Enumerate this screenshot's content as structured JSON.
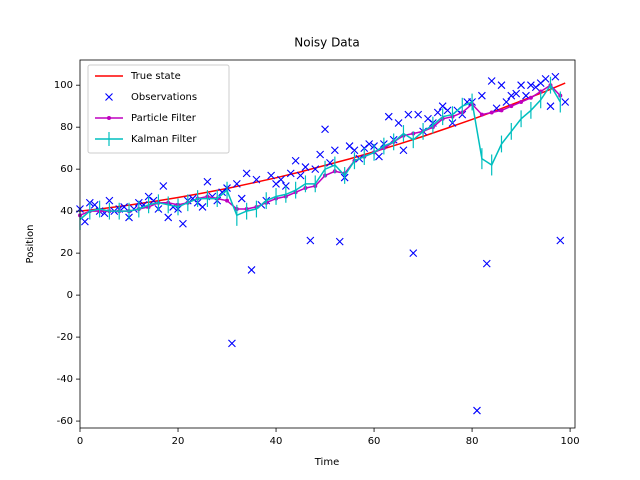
{
  "chart_data": {
    "type": "line",
    "title": "Noisy Data",
    "x_label": "Time",
    "y_label": "Position",
    "xlim": [
      0,
      101
    ],
    "ylim": [
      -63.3,
      112
    ],
    "xticks": [
      0,
      20,
      40,
      60,
      80,
      100
    ],
    "yticks": [
      -60,
      -40,
      -20,
      0,
      20,
      40,
      60,
      80,
      100
    ],
    "grid": false,
    "legend": "upper left",
    "series": [
      {
        "name": "True state",
        "color": "#ff0000",
        "line": true,
        "marker": "none",
        "x": [
          0,
          5,
          10,
          15,
          20,
          25,
          30,
          35,
          40,
          45,
          50,
          55,
          60,
          65,
          70,
          75,
          80,
          85,
          90,
          95,
          99
        ],
        "values": [
          40,
          41.3,
          42.9,
          44.6,
          46.5,
          48.6,
          50.8,
          53.3,
          55.9,
          58.7,
          61.8,
          64.9,
          68.3,
          71.9,
          75.6,
          79.6,
          83.7,
          88.0,
          92.5,
          97.1,
          101.0
        ]
      },
      {
        "name": "Observations",
        "color": "#0000ff",
        "line": false,
        "marker": "x",
        "x": [
          0,
          1,
          2,
          3,
          4,
          5,
          6,
          7,
          8,
          9,
          10,
          11,
          12,
          13,
          14,
          15,
          16,
          17,
          18,
          19,
          20,
          21,
          22,
          23,
          24,
          25,
          26,
          27,
          28,
          29,
          30,
          31,
          32,
          33,
          34,
          35,
          36,
          37,
          38,
          39,
          40,
          41,
          42,
          43,
          44,
          45,
          46,
          47,
          48,
          49,
          50,
          51,
          52,
          53,
          54,
          55,
          56,
          57,
          58,
          59,
          60,
          61,
          62,
          63,
          64,
          65,
          66,
          67,
          68,
          69,
          70,
          71,
          72,
          73,
          74,
          75,
          76,
          77,
          78,
          79,
          80,
          81,
          82,
          83,
          84,
          85,
          86,
          87,
          88,
          89,
          90,
          91,
          92,
          93,
          94,
          95,
          96,
          97,
          98,
          99
        ],
        "values": [
          41,
          35,
          44,
          43,
          40,
          39,
          45,
          40,
          41,
          42,
          37,
          41,
          44,
          43,
          47,
          45,
          41,
          52,
          37,
          42,
          41,
          34,
          45,
          46,
          44,
          42,
          54,
          47,
          45,
          49,
          51,
          -23,
          53,
          46,
          58,
          12,
          55,
          43,
          45,
          57,
          53,
          55,
          52,
          58,
          64,
          57,
          61,
          26,
          60,
          67,
          79,
          63,
          69,
          25.5,
          56,
          71,
          69,
          65,
          70,
          72,
          71,
          66,
          72,
          85,
          74,
          82,
          69,
          86,
          20,
          86,
          78,
          84,
          82,
          87,
          90,
          88,
          82,
          88,
          86,
          92,
          92,
          -55,
          95,
          15,
          102,
          89,
          100,
          92,
          95,
          96,
          100,
          95,
          100,
          99,
          101,
          103,
          90,
          104,
          26,
          92
        ]
      },
      {
        "name": "Particle Filter",
        "color": "#bf00bf",
        "line": true,
        "marker": "o",
        "x": [
          0,
          2,
          4,
          6,
          8,
          10,
          12,
          14,
          16,
          18,
          20,
          22,
          24,
          26,
          28,
          30,
          32,
          34,
          36,
          38,
          40,
          42,
          44,
          46,
          48,
          50,
          52,
          54,
          56,
          58,
          60,
          62,
          64,
          66,
          68,
          70,
          72,
          74,
          76,
          78,
          80,
          82,
          84,
          86,
          88,
          90,
          92,
          94,
          96,
          98
        ],
        "values": [
          38,
          40,
          40,
          40,
          40,
          40,
          41,
          42,
          44,
          44,
          43,
          44,
          46,
          47,
          46,
          45,
          41,
          41,
          42,
          44,
          46,
          47,
          49,
          51,
          52,
          57,
          59,
          58,
          64,
          66,
          68,
          70,
          73,
          76,
          77,
          78,
          80,
          84,
          85,
          87,
          91,
          86,
          87,
          88,
          90,
          92,
          94,
          97,
          100,
          95
        ]
      },
      {
        "name": "Kalman Filter",
        "color": "#00bfbf",
        "line": true,
        "marker": "errorbar",
        "x": [
          0,
          2,
          4,
          6,
          8,
          10,
          12,
          14,
          16,
          18,
          20,
          22,
          24,
          26,
          28,
          30,
          32,
          34,
          36,
          38,
          40,
          42,
          44,
          46,
          48,
          50,
          52,
          54,
          56,
          58,
          60,
          62,
          64,
          66,
          68,
          70,
          72,
          74,
          76,
          78,
          80,
          82,
          84,
          86,
          88,
          90,
          92,
          94,
          96,
          98
        ],
        "values": [
          36,
          40,
          41,
          40,
          40,
          40,
          41,
          43,
          44,
          43,
          42,
          44,
          46,
          46,
          46,
          50,
          38,
          40,
          41,
          45,
          47,
          48,
          50,
          53,
          53,
          60,
          62,
          57,
          64,
          66,
          68,
          71,
          73,
          77,
          74,
          78,
          81,
          85,
          86,
          90,
          92,
          65,
          62,
          72,
          78,
          84,
          88,
          93,
          100,
          92
        ],
        "errors": [
          5,
          4,
          4,
          4,
          4,
          4,
          4,
          4,
          4,
          4,
          4,
          4,
          4,
          4,
          4,
          4,
          5,
          4,
          4,
          4,
          4,
          4,
          4,
          4,
          4,
          4,
          4,
          4,
          4,
          4,
          4,
          4,
          4,
          4,
          4,
          4,
          4,
          4,
          4,
          4,
          4,
          5,
          5,
          4,
          4,
          4,
          4,
          4,
          4,
          5
        ]
      }
    ]
  }
}
